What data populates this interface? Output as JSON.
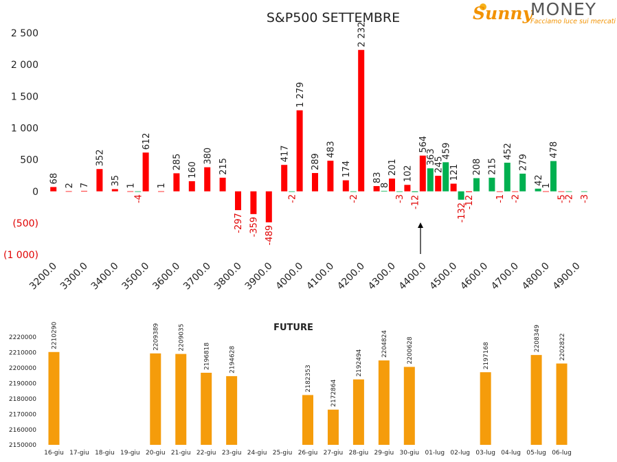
{
  "logo": {
    "brand": "Sunny",
    "name": "MONEY",
    "tagline": "Facciamo luce sui mercati"
  },
  "chart_data": [
    {
      "type": "bar",
      "title": "S&P500 SETTEMBRE",
      "categories": [
        "3200.0",
        null,
        "3300.0",
        null,
        "3400.0",
        null,
        "3500.0",
        null,
        "3600.0",
        null,
        "3700.0",
        null,
        "3800.0",
        null,
        "3900.0",
        null,
        "4000.0",
        null,
        "4100.0",
        null,
        "4200.0",
        null,
        "4300.0",
        null,
        "4400.0",
        null,
        "4500.0",
        null,
        "4600.0",
        null,
        "4700.0",
        null,
        "4800.0",
        null,
        "4900.0"
      ],
      "series": [
        {
          "color": "#ff0000",
          "values": [
            68,
            2,
            7,
            352,
            35,
            1,
            612,
            1,
            285,
            160,
            380,
            215,
            -297,
            -359,
            -489,
            417,
            1279,
            289,
            483,
            174,
            2232,
            83,
            201,
            102,
            564,
            245,
            121,
            -12,
            null,
            -1,
            -2,
            null,
            1,
            -5,
            null
          ],
          "value_labels": [
            "68",
            "2",
            "7",
            "352",
            "35",
            "1",
            "612",
            "1",
            "285",
            "160",
            "380",
            "215",
            "-297",
            "-359",
            "-489",
            "417",
            "1 279",
            "289",
            "483",
            "174",
            "2 232",
            "83",
            "201",
            "102",
            "564",
            "245",
            "121",
            "-12",
            null,
            "-1",
            "-2",
            null,
            "1",
            "-5",
            null
          ]
        },
        {
          "color": "#00b050",
          "values": [
            null,
            null,
            null,
            null,
            null,
            -4,
            null,
            null,
            null,
            null,
            null,
            null,
            null,
            null,
            null,
            -2,
            null,
            null,
            null,
            -2,
            null,
            8,
            -3,
            -12,
            363,
            459,
            -132,
            208,
            215,
            452,
            279,
            42,
            478,
            -2,
            -3
          ]
        }
      ],
      "ylim": [
        -1000,
        2500
      ],
      "yticks": [
        {
          "value": -1000,
          "label": "(1 000)"
        },
        {
          "value": -500,
          "label": "(500)"
        },
        0,
        500,
        {
          "value": 1000,
          "label": "1 000"
        },
        {
          "value": 1500,
          "label": "1 500"
        },
        {
          "value": 2000,
          "label": "2 000"
        },
        {
          "value": 2500,
          "label": "2 500"
        }
      ],
      "grid": false
    },
    {
      "type": "bar",
      "title": "FUTURE",
      "categories": [
        "16-giu",
        "17-giu",
        "18-giu",
        "19-giu",
        "20-giu",
        "21-giu",
        "22-giu",
        "23-giu",
        "24-giu",
        "25-giu",
        "26-giu",
        "27-giu",
        "28-giu",
        "29-giu",
        "30-giu",
        "01-lug",
        "02-lug",
        "03-lug",
        "04-lug",
        "05-lug",
        "06-lug"
      ],
      "series": [
        {
          "color": "#f59c0b",
          "values": [
            2210290,
            null,
            null,
            null,
            2209389,
            2209035,
            2196818,
            2194628,
            null,
            null,
            2182353,
            2172864,
            2192494,
            2204824,
            2200628,
            null,
            null,
            2197168,
            null,
            2208349,
            2202822
          ]
        }
      ],
      "ylim": [
        2150000,
        2220000
      ],
      "yticks": [
        2150000,
        2160000,
        2170000,
        2180000,
        2190000,
        2200000,
        2210000,
        2220000
      ],
      "grid": false
    }
  ]
}
